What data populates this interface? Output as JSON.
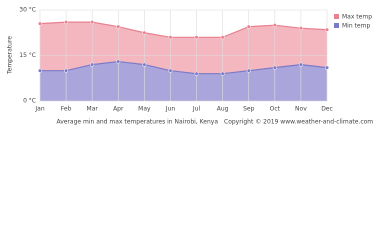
{
  "chart_data": {
    "type": "area",
    "y_label": "Temperature",
    "categories": [
      "Jan",
      "Feb",
      "Mar",
      "Apr",
      "May",
      "Jun",
      "Jul",
      "Aug",
      "Sep",
      "Oct",
      "Nov",
      "Dec"
    ],
    "series": [
      {
        "name": "Max temp",
        "color": "#e8808f",
        "fill": "#f4b6bf",
        "values": [
          25.5,
          26,
          26,
          24.5,
          22.5,
          21,
          21,
          21,
          24.5,
          25,
          24,
          23.5
        ]
      },
      {
        "name": "Min temp",
        "color": "#7a7ac8",
        "fill": "#aaa6dc",
        "values": [
          10,
          10,
          12,
          13,
          12,
          10,
          9,
          9,
          10,
          11,
          12,
          11
        ]
      }
    ],
    "ylim": [
      0,
      30
    ],
    "yticks": [
      {
        "value": 0,
        "label": "0 °C"
      },
      {
        "value": 15,
        "label": "15 °C"
      },
      {
        "value": 30,
        "label": "30 °C"
      }
    ],
    "grid": true,
    "caption": "Average min and max temperatures in Nairobi, Kenya",
    "copyright": "Copyright © 2019 www.weather-and-climate.com"
  }
}
